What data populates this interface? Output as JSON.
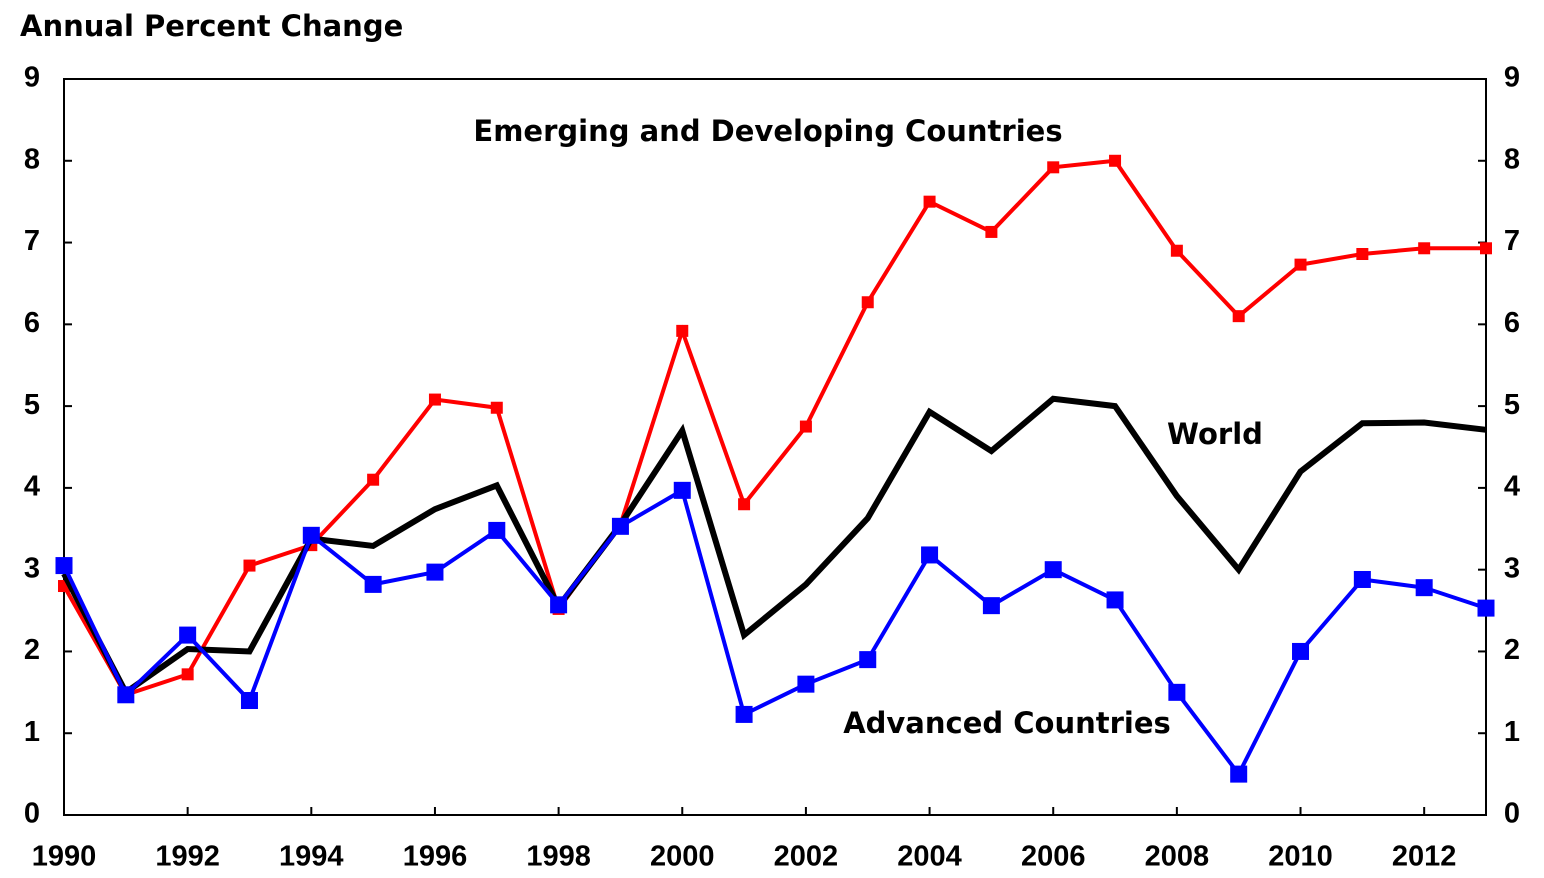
{
  "chart_data": {
    "type": "line",
    "y_label": "Annual Percent Change",
    "x": [
      1990,
      1991,
      1992,
      1993,
      1994,
      1995,
      1996,
      1997,
      1998,
      1999,
      2000,
      2001,
      2002,
      2003,
      2004,
      2005,
      2006,
      2007,
      2008,
      2009,
      2010,
      2011,
      2012,
      2013
    ],
    "xlim": [
      1990,
      2013
    ],
    "xticks": [
      1990,
      1992,
      1994,
      1996,
      1998,
      2000,
      2002,
      2004,
      2006,
      2008,
      2010,
      2012
    ],
    "ylim": [
      0,
      9
    ],
    "yticks": [
      0,
      1,
      2,
      3,
      4,
      5,
      6,
      7,
      8,
      9
    ],
    "y2lim": [
      0,
      9
    ],
    "y2ticks": [
      0,
      1,
      2,
      3,
      4,
      5,
      6,
      7,
      8,
      9
    ],
    "grid": false,
    "series": [
      {
        "name": "Emerging and Developing Countries",
        "color": "#ff0000",
        "marker": "square",
        "values": [
          2.8,
          1.47,
          1.72,
          3.05,
          3.3,
          4.1,
          5.08,
          4.98,
          2.52,
          3.55,
          5.92,
          3.8,
          4.75,
          6.27,
          7.5,
          7.13,
          7.92,
          8.0,
          6.9,
          6.1,
          6.73,
          6.86,
          6.93,
          6.93
        ]
      },
      {
        "name": "World",
        "color": "#000000",
        "marker": "none",
        "values": [
          2.95,
          1.5,
          2.03,
          2.0,
          3.38,
          3.29,
          3.74,
          4.03,
          2.55,
          3.55,
          4.7,
          2.2,
          2.82,
          3.63,
          4.93,
          4.45,
          5.09,
          5.0,
          3.9,
          3.0,
          4.2,
          4.79,
          4.8,
          4.71
        ]
      },
      {
        "name": "Advanced Countries",
        "color": "#0000ff",
        "marker": "square",
        "values": [
          3.05,
          1.47,
          2.2,
          1.4,
          3.42,
          2.82,
          2.97,
          3.48,
          2.57,
          3.53,
          3.97,
          1.23,
          1.6,
          1.9,
          3.18,
          2.56,
          3.0,
          2.63,
          1.5,
          0.5,
          2.0,
          2.88,
          2.78,
          2.53
        ]
      }
    ]
  }
}
